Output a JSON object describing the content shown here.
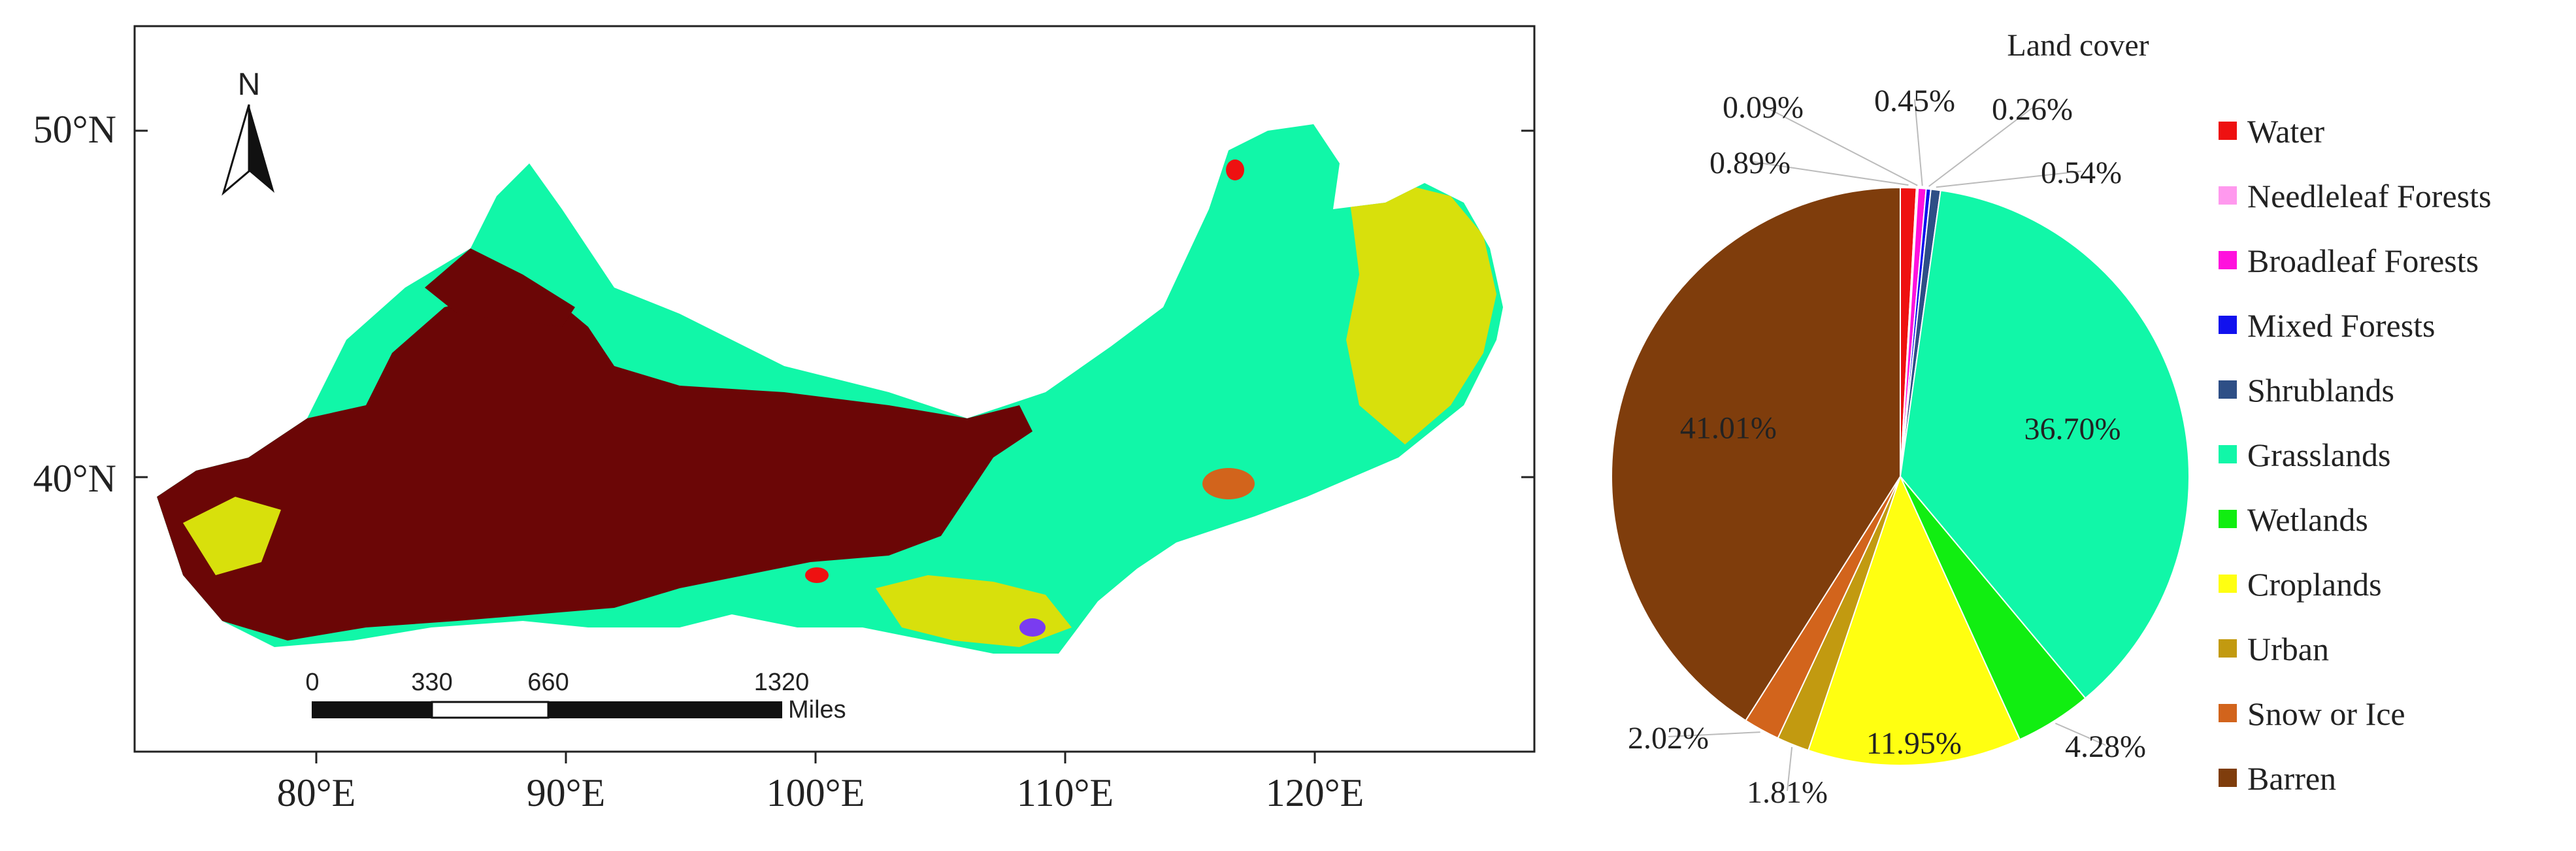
{
  "map": {
    "north_label": "N",
    "lat_labels": [
      "50°N",
      "40°N"
    ],
    "lon_labels": [
      "80°E",
      "90°E",
      "100°E",
      "110°E",
      "120°E"
    ],
    "scale_ticks": [
      "0",
      "330",
      "660",
      "1320"
    ],
    "scale_unit": "Miles"
  },
  "chart_data": {
    "type": "pie",
    "title": "Land cover",
    "legend_position": "right",
    "slices": [
      {
        "name": "Water",
        "value": 0.89,
        "label": "0.89%",
        "color": "#ee1111"
      },
      {
        "name": "Needleleaf Forests",
        "value": 0.09,
        "label": "0.09%",
        "color": "#ff99ee"
      },
      {
        "name": "Broadleaf Forests",
        "value": 0.45,
        "label": "0.45%",
        "color": "#ff11dd"
      },
      {
        "name": "Mixed Forests",
        "value": 0.26,
        "label": "0.26%",
        "color": "#1111ee"
      },
      {
        "name": "Shrublands",
        "value": 0.54,
        "label": "0.54%",
        "color": "#2e4f86"
      },
      {
        "name": "Grasslands",
        "value": 36.7,
        "label": "36.70%",
        "color": "#11f7a8"
      },
      {
        "name": "Wetlands",
        "value": 4.28,
        "label": "4.28%",
        "color": "#11ee11"
      },
      {
        "name": "Croplands",
        "value": 11.95,
        "label": "11.95%",
        "color": "#ffff11"
      },
      {
        "name": "Urban",
        "value": 1.81,
        "label": "1.81%",
        "color": "#c29a10"
      },
      {
        "name": "Snow or Ice",
        "value": 2.02,
        "label": "2.02%",
        "color": "#d2641c"
      },
      {
        "name": "Barren",
        "value": 41.01,
        "label": "41.01%",
        "color": "#7f3d0c"
      }
    ]
  }
}
